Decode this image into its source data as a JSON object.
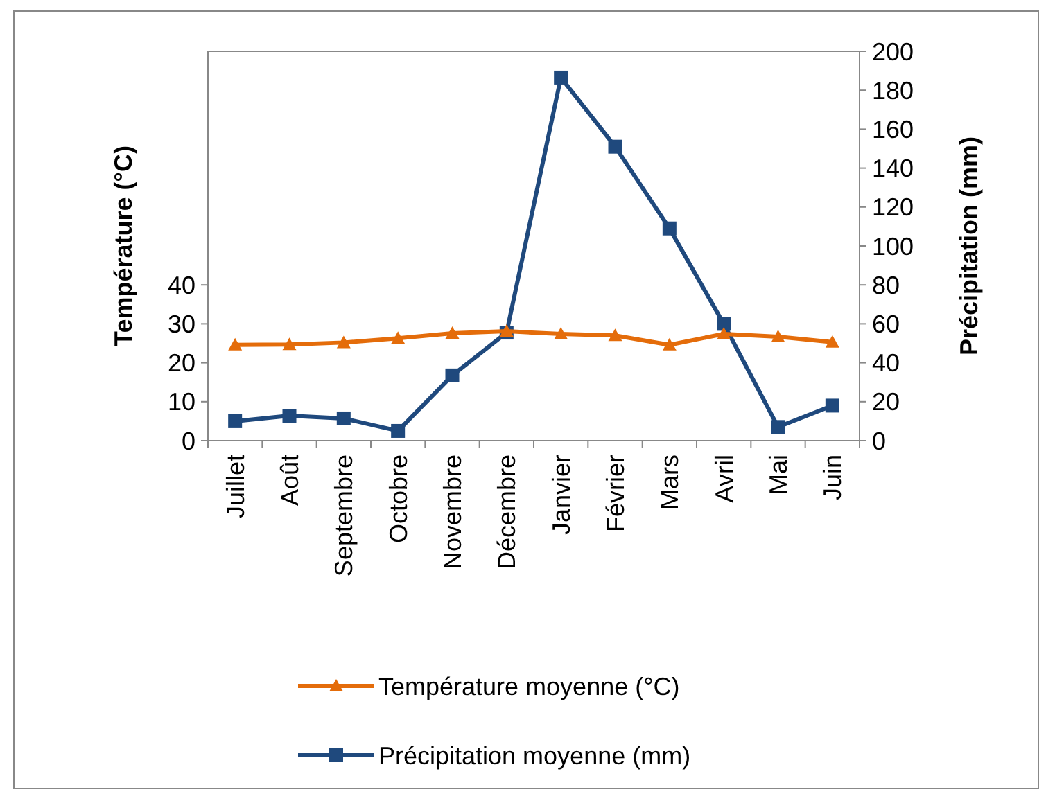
{
  "chart_data": {
    "type": "line",
    "ylabel": "Température (°C)",
    "y2label": "Précipitation (mm)",
    "categories": [
      "Juillet",
      "Août",
      "Septembre",
      "Octobre",
      "Novembre",
      "Décembre",
      "Janvier",
      "Février",
      "Mars",
      "Avril",
      "Mai",
      "Juin"
    ],
    "series": [
      {
        "name": "Température moyenne (°C)",
        "color": "#e46c0a",
        "marker": "triangle",
        "values": [
          24.6,
          24.7,
          25.2,
          26.3,
          27.6,
          28.1,
          27.4,
          27.0,
          24.6,
          27.4,
          26.7,
          25.3
        ]
      },
      {
        "name": "Précipitation moyenne (mm)",
        "color": "#1f497d",
        "marker": "square",
        "axis": "y2",
        "values": [
          10,
          12.8,
          11.4,
          5,
          33.5,
          55.5,
          186.5,
          151,
          109,
          60,
          7,
          18
        ]
      }
    ],
    "ylim": [
      0,
      100
    ],
    "yticks": [
      0,
      10,
      20,
      30,
      40
    ],
    "y2lim": [
      0,
      200
    ],
    "y2ticks": [
      0,
      20,
      40,
      60,
      80,
      100,
      120,
      140,
      160,
      180,
      200
    ],
    "grid": false,
    "legend": "bottom"
  }
}
